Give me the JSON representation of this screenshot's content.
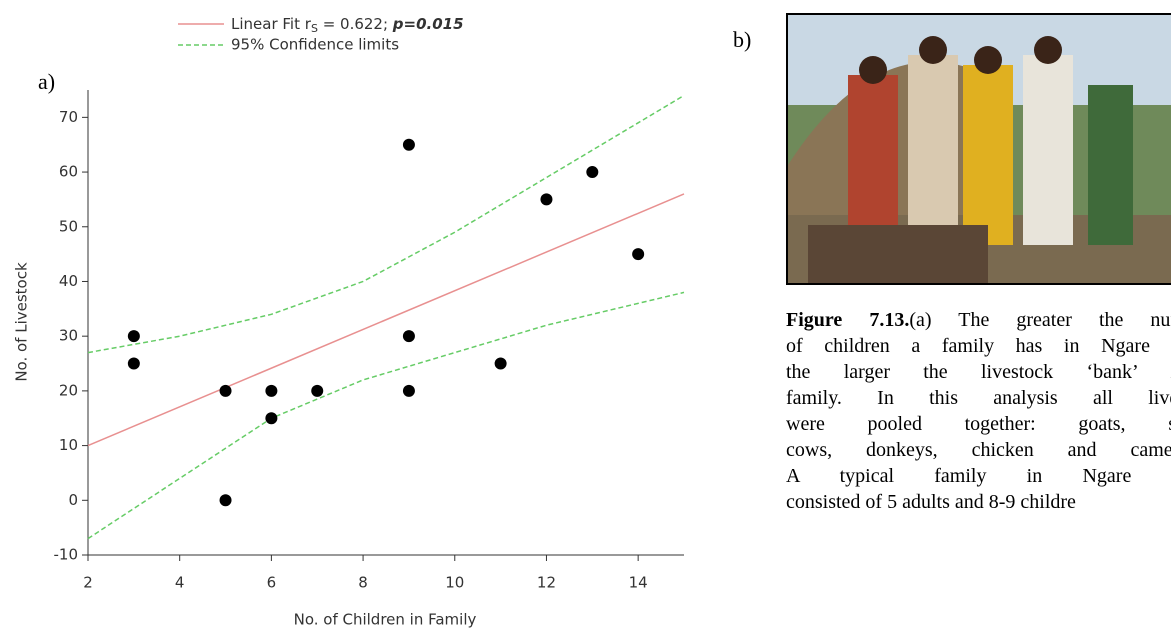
{
  "panel_a_label": "a)",
  "panel_b_label": "b)",
  "chart_data": {
    "type": "scatter",
    "x_label": "No. of Children in Family",
    "y_label": "No. of Livestock",
    "x": [
      3,
      3,
      5,
      5,
      6,
      6,
      7,
      9,
      9,
      9,
      11,
      12,
      13,
      14
    ],
    "values": [
      30,
      25,
      20,
      0,
      20,
      15,
      20,
      65,
      30,
      20,
      25,
      55,
      60,
      45
    ],
    "color": "#000000",
    "fit": {
      "name": "Linear Fit",
      "stat_r": "r",
      "stat_sub": "S",
      "stat_eq": " = 0.622; ",
      "stat_p": "p=0.015",
      "color": "#e89090",
      "x": [
        2,
        15
      ],
      "values": [
        10,
        56
      ]
    },
    "confidence": {
      "name": "95% Confidence limits",
      "color": "#66cc66",
      "x": [
        2,
        4,
        6,
        8,
        10,
        12,
        14,
        15
      ],
      "upper": [
        27,
        30,
        34,
        40,
        49,
        59,
        69,
        74
      ],
      "lower": [
        -7,
        4,
        15,
        22,
        27,
        32,
        36,
        38
      ]
    },
    "xlim": [
      2,
      15
    ],
    "ylim": [
      -10,
      75
    ],
    "xticks": [
      2,
      4,
      6,
      8,
      10,
      12,
      14
    ],
    "yticks": [
      -10,
      0,
      10,
      20,
      30,
      40,
      50,
      60,
      70
    ]
  },
  "caption": {
    "label": "Figure 7.13.",
    "lines": [
      "(a) The greater the num",
      "of children a family has in Ngare N",
      "the larger the livestock ‘bank’ in",
      "family. In this analysis all lives",
      "were pooled together: goats, sh",
      "cows, donkeys, chicken and camels",
      "A typical family in Ngare N",
      "consisted of 5 adults and 8-9 childre"
    ]
  }
}
